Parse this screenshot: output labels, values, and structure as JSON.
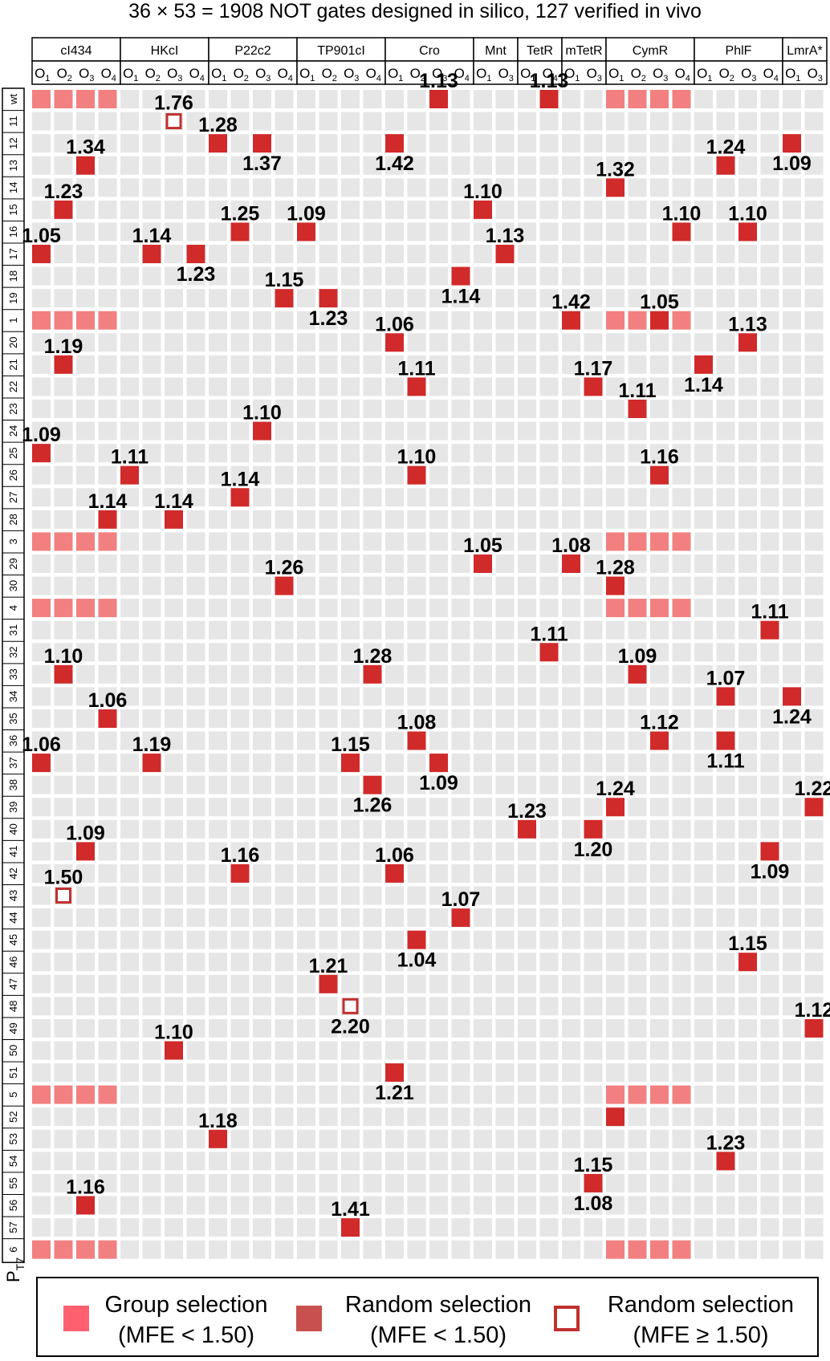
{
  "chart_data": {
    "type": "heatmap",
    "title": "36 × 53 = 1908 NOT gates designed in silico, 127 verified in vivo",
    "y_axis_label": "P",
    "y_axis_label_sub": "T7",
    "groups": [
      {
        "name": "cI434",
        "operators": [
          "1",
          "2",
          "3",
          "4"
        ]
      },
      {
        "name": "HKcI",
        "operators": [
          "1",
          "2",
          "3",
          "4"
        ]
      },
      {
        "name": "P22c2",
        "operators": [
          "1",
          "2",
          "3",
          "4"
        ]
      },
      {
        "name": "TP901cI",
        "operators": [
          "1",
          "2",
          "3",
          "4"
        ]
      },
      {
        "name": "Cro",
        "operators": [
          "1",
          "2",
          "3",
          "4"
        ]
      },
      {
        "name": "Mnt",
        "operators": [
          "1",
          "3"
        ]
      },
      {
        "name": "TetR",
        "operators": [
          "1",
          "4"
        ]
      },
      {
        "name": "mTetR",
        "operators": [
          "1",
          "3"
        ]
      },
      {
        "name": "CymR",
        "operators": [
          "1",
          "2",
          "3",
          "4"
        ]
      },
      {
        "name": "PhlF",
        "operators": [
          "1",
          "2",
          "3",
          "4"
        ]
      },
      {
        "name": "LmrA*",
        "operators": [
          "1",
          "3"
        ]
      }
    ],
    "rows": [
      "wt",
      "11",
      "12",
      "13",
      "14",
      "15",
      "16",
      "17",
      "18",
      "19",
      "1",
      "20",
      "21",
      "22",
      "23",
      "24",
      "25",
      "26",
      "27",
      "28",
      "3",
      "29",
      "30",
      "4",
      "31",
      "32",
      "33",
      "34",
      "35",
      "36",
      "37",
      "38",
      "39",
      "40",
      "41",
      "42",
      "43",
      "44",
      "45",
      "46",
      "47",
      "48",
      "49",
      "50",
      "51",
      "5",
      "52",
      "53",
      "54",
      "55",
      "56",
      "57",
      "6"
    ],
    "group_selection": {
      "rows": [
        "wt",
        "1",
        "3",
        "4",
        "5",
        "6"
      ],
      "columns": [
        0,
        1,
        2,
        3,
        26,
        27,
        28,
        29
      ]
    },
    "random_selection": [
      {
        "row": "wt",
        "col": 18,
        "value": 1.13,
        "label": "above"
      },
      {
        "row": "wt",
        "col": 23,
        "value": 1.13,
        "label": "above"
      },
      {
        "row": "11",
        "col": 6,
        "value": 1.76,
        "label": "above",
        "open": true
      },
      {
        "row": "12",
        "col": 8,
        "value": 1.28,
        "label": "above"
      },
      {
        "row": "12",
        "col": 10,
        "value": 1.37,
        "label": "below"
      },
      {
        "row": "12",
        "col": 16,
        "value": 1.42,
        "label": "below"
      },
      {
        "row": "12",
        "col": 34,
        "value": 1.09,
        "label": "below"
      },
      {
        "row": "13",
        "col": 2,
        "value": 1.34,
        "label": "above"
      },
      {
        "row": "13",
        "col": 31,
        "value": 1.24,
        "label": "above"
      },
      {
        "row": "14",
        "col": 26,
        "value": 1.32,
        "label": "above"
      },
      {
        "row": "15",
        "col": 1,
        "value": 1.23,
        "label": "above"
      },
      {
        "row": "15",
        "col": 20,
        "value": 1.1,
        "label": "above"
      },
      {
        "row": "16",
        "col": 9,
        "value": 1.25,
        "label": "above"
      },
      {
        "row": "16",
        "col": 12,
        "value": 1.09,
        "label": "above"
      },
      {
        "row": "16",
        "col": 29,
        "value": 1.1,
        "label": "above"
      },
      {
        "row": "16",
        "col": 32,
        "value": 1.1,
        "label": "above"
      },
      {
        "row": "17",
        "col": 0,
        "value": 1.05,
        "label": "above"
      },
      {
        "row": "17",
        "col": 5,
        "value": 1.14,
        "label": "above"
      },
      {
        "row": "17",
        "col": 7,
        "value": 1.23,
        "label": "below"
      },
      {
        "row": "17",
        "col": 21,
        "value": 1.13,
        "label": "above"
      },
      {
        "row": "18",
        "col": 19,
        "value": 1.14,
        "label": "below"
      },
      {
        "row": "19",
        "col": 11,
        "value": 1.15,
        "label": "above"
      },
      {
        "row": "19",
        "col": 13,
        "value": 1.23,
        "label": "below"
      },
      {
        "row": "1",
        "col": 24,
        "value": 1.42,
        "label": "above"
      },
      {
        "row": "1",
        "col": 28,
        "value": 1.05,
        "label": "above"
      },
      {
        "row": "20",
        "col": 16,
        "value": 1.06,
        "label": "above"
      },
      {
        "row": "20",
        "col": 32,
        "value": 1.13,
        "label": "above"
      },
      {
        "row": "21",
        "col": 1,
        "value": 1.19,
        "label": "above"
      },
      {
        "row": "21",
        "col": 30,
        "value": 1.14,
        "label": "below"
      },
      {
        "row": "22",
        "col": 17,
        "value": 1.11,
        "label": "above"
      },
      {
        "row": "22",
        "col": 25,
        "value": 1.17,
        "label": "above"
      },
      {
        "row": "23",
        "col": 27,
        "value": 1.11,
        "label": "above"
      },
      {
        "row": "24",
        "col": 10,
        "value": 1.1,
        "label": "above"
      },
      {
        "row": "25",
        "col": 0,
        "value": 1.09,
        "label": "above"
      },
      {
        "row": "26",
        "col": 4,
        "value": 1.11,
        "label": "above"
      },
      {
        "row": "26",
        "col": 17,
        "value": 1.1,
        "label": "above"
      },
      {
        "row": "26",
        "col": 28,
        "value": 1.16,
        "label": "above"
      },
      {
        "row": "27",
        "col": 9,
        "value": 1.14,
        "label": "above"
      },
      {
        "row": "28",
        "col": 3,
        "value": 1.14,
        "label": "above"
      },
      {
        "row": "28",
        "col": 6,
        "value": 1.14,
        "label": "above"
      },
      {
        "row": "29",
        "col": 20,
        "value": 1.05,
        "label": "above"
      },
      {
        "row": "29",
        "col": 24,
        "value": 1.08,
        "label": "above"
      },
      {
        "row": "30",
        "col": 11,
        "value": 1.26,
        "label": "above"
      },
      {
        "row": "30",
        "col": 26,
        "value": 1.28,
        "label": "above"
      },
      {
        "row": "31",
        "col": 33,
        "value": 1.11,
        "label": "above"
      },
      {
        "row": "32",
        "col": 23,
        "value": 1.11,
        "label": "above"
      },
      {
        "row": "33",
        "col": 1,
        "value": 1.1,
        "label": "above"
      },
      {
        "row": "33",
        "col": 15,
        "value": 1.28,
        "label": "above"
      },
      {
        "row": "33",
        "col": 27,
        "value": 1.09,
        "label": "above"
      },
      {
        "row": "34",
        "col": 31,
        "value": 1.07,
        "label": "above"
      },
      {
        "row": "34",
        "col": 34,
        "value": 1.24,
        "label": "below"
      },
      {
        "row": "35",
        "col": 3,
        "value": 1.06,
        "label": "above"
      },
      {
        "row": "36",
        "col": 17,
        "value": 1.08,
        "label": "above"
      },
      {
        "row": "36",
        "col": 28,
        "value": 1.12,
        "label": "above"
      },
      {
        "row": "36",
        "col": 31,
        "value": 1.11,
        "label": "below"
      },
      {
        "row": "37",
        "col": 0,
        "value": 1.06,
        "label": "above"
      },
      {
        "row": "37",
        "col": 5,
        "value": 1.19,
        "label": "above"
      },
      {
        "row": "37",
        "col": 14,
        "value": 1.15,
        "label": "above"
      },
      {
        "row": "37",
        "col": 18,
        "value": 1.09,
        "label": "below"
      },
      {
        "row": "38",
        "col": 15,
        "value": 1.26,
        "label": "below"
      },
      {
        "row": "39",
        "col": 26,
        "value": 1.24,
        "label": "above"
      },
      {
        "row": "39",
        "col": 35,
        "value": 1.22,
        "label": "above"
      },
      {
        "row": "40",
        "col": 22,
        "value": 1.23,
        "label": "above"
      },
      {
        "row": "40",
        "col": 25,
        "value": 1.2,
        "label": "below"
      },
      {
        "row": "41",
        "col": 2,
        "value": 1.09,
        "label": "above"
      },
      {
        "row": "41",
        "col": 33,
        "value": 1.09,
        "label": "below"
      },
      {
        "row": "42",
        "col": 9,
        "value": 1.16,
        "label": "above"
      },
      {
        "row": "42",
        "col": 16,
        "value": 1.06,
        "label": "above"
      },
      {
        "row": "43",
        "col": 1,
        "value": 1.5,
        "label": "above",
        "open": true
      },
      {
        "row": "44",
        "col": 19,
        "value": 1.07,
        "label": "above"
      },
      {
        "row": "45",
        "col": 17,
        "value": 1.04,
        "label": "below"
      },
      {
        "row": "46",
        "col": 32,
        "value": 1.15,
        "label": "above"
      },
      {
        "row": "47",
        "col": 13,
        "value": 1.21,
        "label": "above"
      },
      {
        "row": "48",
        "col": 14,
        "value": 2.2,
        "label": "below",
        "open": true
      },
      {
        "row": "49",
        "col": 35,
        "value": 1.12,
        "label": "above"
      },
      {
        "row": "50",
        "col": 6,
        "value": 1.1,
        "label": "above"
      },
      {
        "row": "51",
        "col": 16,
        "value": 1.21,
        "label": "below"
      },
      {
        "row": "52",
        "col": 26,
        "value": null
      },
      {
        "row": "53",
        "col": 8,
        "value": 1.18,
        "label": "above"
      },
      {
        "row": "54",
        "col": 31,
        "value": 1.23,
        "label": "above"
      },
      {
        "row": "55",
        "col": 25,
        "value": 1.15,
        "label": "above"
      },
      {
        "row": "56",
        "col": 2,
        "value": 1.16,
        "label": "above"
      },
      {
        "row": "57",
        "col": 14,
        "value": 1.41,
        "label": "above"
      }
    ],
    "extra_labels": [
      {
        "row": "55",
        "col": 25,
        "value": "1.08",
        "label": "below"
      }
    ],
    "legend": [
      {
        "key": "group",
        "line1": "Group selection",
        "line2": "(MFE < 1.50)"
      },
      {
        "key": "random",
        "line1": "Random selection",
        "line2": "(MFE < 1.50)"
      },
      {
        "key": "open",
        "line1": "Random selection",
        "line2": "(MFE ≥ 1.50)"
      }
    ],
    "colors": {
      "empty": "#e6e6e6",
      "group": "#f28080",
      "random": "#d12a2a",
      "open_stroke": "#c0302f",
      "legend_group": "#ff6070",
      "legend_random": "#c8504e",
      "legend_open": "#c0302f"
    }
  }
}
